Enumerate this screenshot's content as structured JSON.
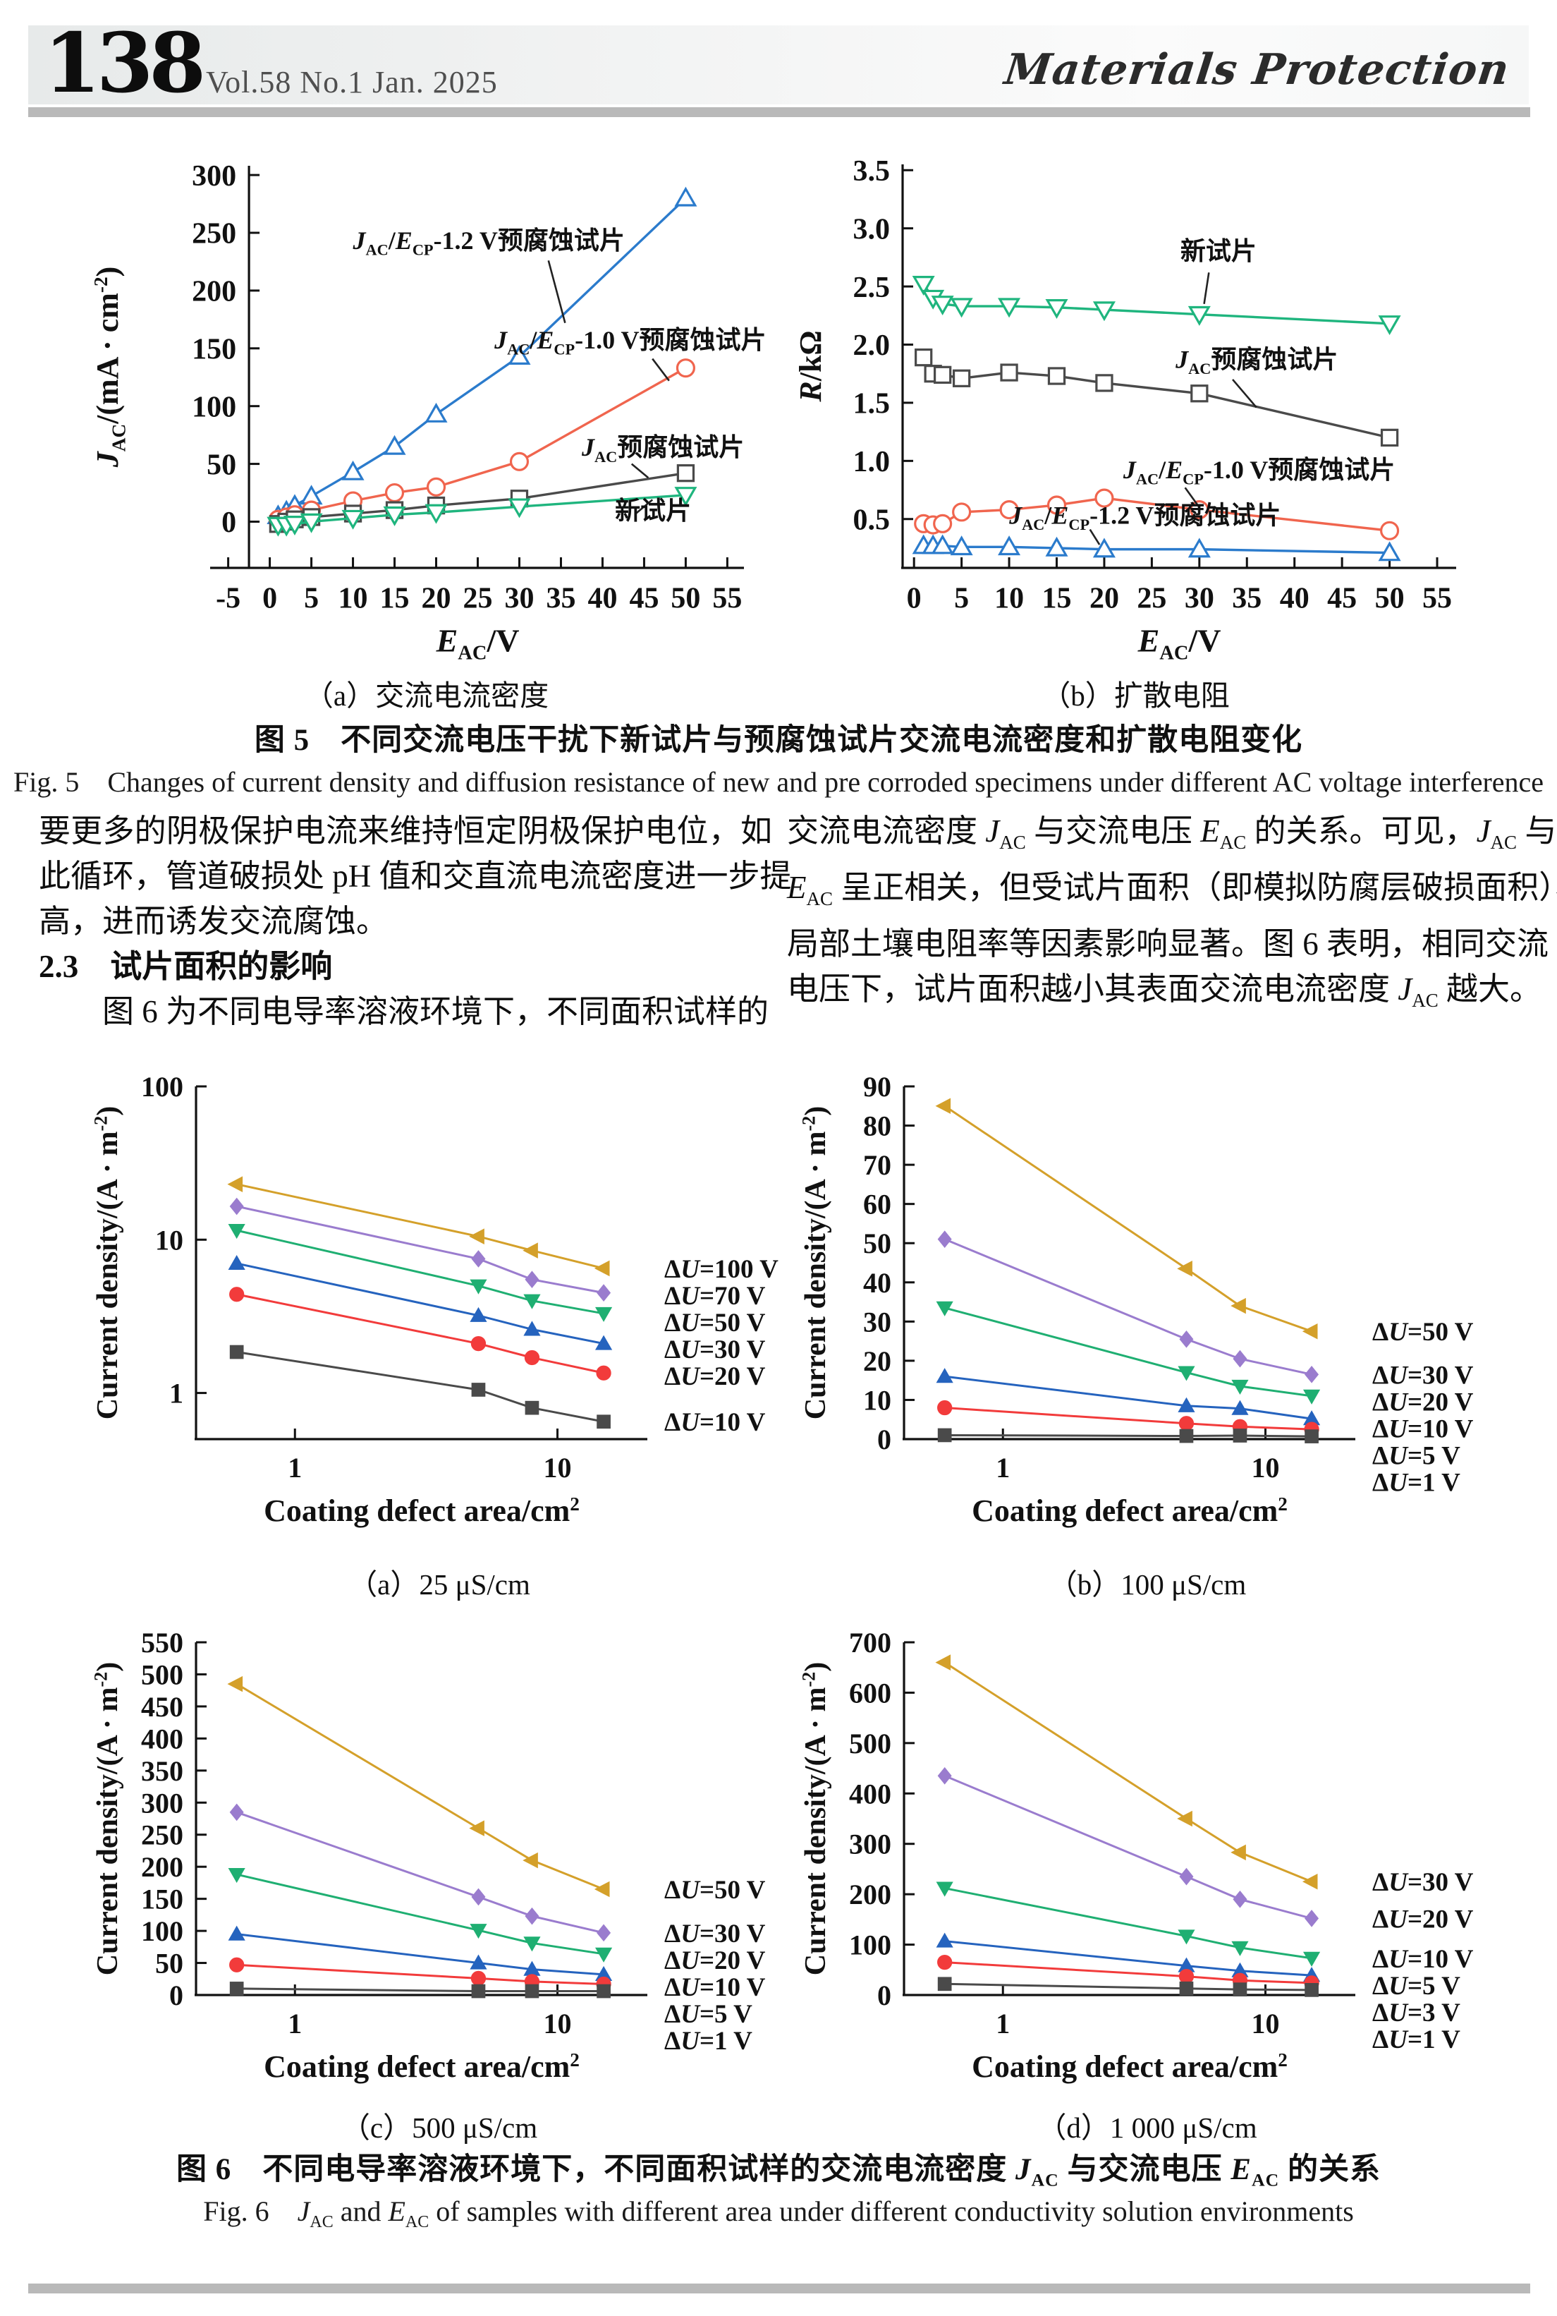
{
  "header": {
    "page_number": "138",
    "issue": "Vol.58 No.1 Jan. 2025",
    "journal": "Materials Protection"
  },
  "colors": {
    "rule_gray": "#b9b9b9",
    "series_blue": "#2B7BCC",
    "series_red": "#F0654E",
    "series_dark": "#4A4A4A",
    "series_green": "#1FB57E",
    "series_gold": "#D4A02A",
    "series_purple": "#9A7CCE"
  },
  "body": {
    "left": {
      "p1_lines": [
        "要更多的阴极保护电流来维持恒定阴极保护电位，如",
        "此循环，管道破损处 pH 值和交直流电流密度进一步提",
        "高，进而诱发交流腐蚀。"
      ],
      "heading": "2.3　试片面积的影响",
      "p2": "图 6 为不同电导率溶液环境下，不同面积试样的"
    },
    "right": {
      "lines": [
        "交流电流密度 *J*_[AC] 与交流电压 *E*_[AC] 的关系。可见，*J*_[AC] 与",
        "*E*_[AC] 呈正相关，但受试片面积（即模拟防腐层破损面积）、",
        "局部土壤电阻率等因素影响显著。图 6 表明，相同交流",
        "电压下，试片面积越小其表面交流电流密度 *J*_[AC] 越大。"
      ]
    }
  },
  "fig5": {
    "caption_zh": "图 5　不同交流电压干扰下新试片与预腐蚀试片交流电流密度和扩散电阻变化",
    "caption_en": "Fig. 5　Changes of current density and diffusion resistance of new and pre corroded specimens under different AC voltage interference"
  },
  "fig6": {
    "caption_zh": "图 6　不同电导率溶液环境下，不同面积试样的交流电流密度 *J*_[AC] 与交流电压 *E*_[AC] 的关系",
    "caption_en": "Fig. 6　*J*_[AC] and *E*_[AC] of samples with different area under different conductivity solution environments"
  },
  "chart_data": {
    "fig5a": {
      "type": "line",
      "caption": "（a）交流电流密度",
      "xlabel": "*E*_[AC]/V",
      "ylabel": "*J*_[AC]/(mA · cm^[-2])",
      "x": {
        "type": "linear",
        "min": -7,
        "max": 57,
        "ticks": [
          -5,
          0,
          5,
          10,
          15,
          20,
          25,
          30,
          35,
          40,
          45,
          50,
          55
        ]
      },
      "y": {
        "type": "linear",
        "min": -40,
        "max": 308,
        "ticks": [
          0,
          50,
          100,
          150,
          200,
          250,
          300
        ]
      },
      "yaxis_at": -2.5,
      "series": [
        {
          "name": "JAC/ECP-1.2 V预腐蚀试片",
          "marker": "triangle-up",
          "open": true,
          "color": "#2B7BCC",
          "x": [
            1,
            2,
            3,
            5,
            10,
            15,
            20,
            30,
            50
          ],
          "y": [
            5,
            9,
            14,
            22,
            43,
            65,
            93,
            143,
            280
          ]
        },
        {
          "name": "JAC/ECP-1.0 V预腐蚀试片",
          "marker": "circle",
          "open": true,
          "color": "#F0654E",
          "x": [
            1,
            2,
            3,
            5,
            10,
            15,
            20,
            30,
            50
          ],
          "y": [
            2,
            4,
            6,
            10,
            18,
            25,
            30,
            52,
            133
          ]
        },
        {
          "name": "JAC预腐蚀试片",
          "marker": "square",
          "open": true,
          "color": "#4A4A4A",
          "x": [
            1,
            2,
            3,
            5,
            10,
            15,
            20,
            30,
            50
          ],
          "y": [
            -2,
            0,
            2,
            4,
            7,
            10,
            14,
            20,
            42
          ]
        },
        {
          "name": "新试片",
          "marker": "triangle-down",
          "open": true,
          "color": "#1FB57E",
          "x": [
            1,
            2,
            3,
            5,
            10,
            15,
            20,
            30,
            50
          ],
          "y": [
            -3,
            -3,
            -2,
            0,
            3,
            6,
            8,
            13,
            23
          ]
        }
      ],
      "annotations": [
        {
          "text": "*J*_[AC]/*E*_[CP]-1.2 V预腐蚀试片",
          "tx": 10,
          "ty": 236,
          "leader": [
            33.5,
            226,
            35.5,
            172
          ]
        },
        {
          "text": "*J*_[AC]/*E*_[CP]-1.0 V预腐蚀试片",
          "tx": 27,
          "ty": 150,
          "leader": [
            46,
            141,
            48,
            122
          ]
        },
        {
          "text": "*J*_[AC]预腐蚀试片",
          "tx": 37.5,
          "ty": 57,
          "leader": [
            43.5,
            50,
            45.5,
            38
          ]
        },
        {
          "text": "新试片",
          "tx": 41.5,
          "ty": 2,
          "leader": [
            44,
            7,
            46,
            19
          ]
        }
      ]
    },
    "fig5b": {
      "type": "line",
      "caption": "（b）扩散电阻",
      "xlabel": "*E*_[AC]/V",
      "ylabel": "*R*/kΩ",
      "x": {
        "type": "linear",
        "min": -1.2,
        "max": 57,
        "ticks": [
          0,
          5,
          10,
          15,
          20,
          25,
          30,
          35,
          40,
          45,
          50,
          55
        ]
      },
      "y": {
        "type": "linear",
        "min": 0.08,
        "max": 3.55,
        "ticks": [
          0.5,
          1.0,
          1.5,
          2.0,
          2.5,
          3.0,
          3.5
        ],
        "dec": 1
      },
      "series": [
        {
          "name": "新试片",
          "marker": "triangle-down",
          "open": true,
          "color": "#1FB57E",
          "x": [
            1,
            2,
            3,
            5,
            10,
            15,
            20,
            30,
            50
          ],
          "y": [
            2.52,
            2.4,
            2.35,
            2.33,
            2.33,
            2.32,
            2.3,
            2.26,
            2.18
          ]
        },
        {
          "name": "JAC预腐蚀试片",
          "marker": "square",
          "open": true,
          "color": "#4A4A4A",
          "x": [
            1,
            2,
            3,
            5,
            10,
            15,
            20,
            30,
            50
          ],
          "y": [
            1.89,
            1.75,
            1.74,
            1.71,
            1.76,
            1.73,
            1.67,
            1.58,
            1.2
          ]
        },
        {
          "name": "JAC/ECP-1.0 V预腐蚀试片",
          "marker": "circle",
          "open": true,
          "color": "#F0654E",
          "x": [
            1,
            2,
            3,
            5,
            10,
            15,
            20,
            30,
            50
          ],
          "y": [
            0.46,
            0.45,
            0.46,
            0.56,
            0.58,
            0.62,
            0.68,
            0.58,
            0.4
          ]
        },
        {
          "name": "JAC/ECP-1.2 V预腐蚀试片",
          "marker": "triangle-up",
          "open": true,
          "color": "#2B7BCC",
          "x": [
            1,
            2,
            3,
            5,
            10,
            15,
            20,
            30,
            50
          ],
          "y": [
            0.27,
            0.27,
            0.27,
            0.26,
            0.26,
            0.25,
            0.24,
            0.24,
            0.21
          ]
        }
      ],
      "annotations": [
        {
          "text": "新试片",
          "tx": 28,
          "ty": 2.73,
          "leader": [
            31,
            2.62,
            30.5,
            2.35
          ]
        },
        {
          "text": "*J*_[AC]预腐蚀试片",
          "tx": 27.5,
          "ty": 1.8,
          "leader": [
            33.5,
            1.7,
            36,
            1.46
          ]
        },
        {
          "text": "*J*_[AC]/*E*_[CP]-1.0 V预腐蚀试片",
          "tx": 22,
          "ty": 0.85,
          "leader": [
            28.5,
            0.77,
            30,
            0.6
          ]
        },
        {
          "text": "*J*_[AC]/*E*_[CP]-1.2 V预腐蚀试片",
          "tx": 10,
          "ty": 0.46,
          "leader": [
            18.5,
            0.41,
            19.5,
            0.28
          ]
        }
      ]
    },
    "fig6a": {
      "type": "line",
      "caption": "（a）25 μS/cm",
      "xlabel": "Coating defect area/cm^[2]",
      "ylabel": "Current density/(A · m^[-2])",
      "x": {
        "type": "log",
        "min": 0.42,
        "max": 22,
        "ticks": [
          1,
          10
        ]
      },
      "y": {
        "type": "log",
        "min": 0.5,
        "max": 100,
        "ticks": [
          1,
          10,
          100
        ]
      },
      "series": [
        {
          "label": "Δ*U*=100 V",
          "marker": "triangle-left",
          "open": false,
          "color": "#D4A02A",
          "x": [
            0.6,
            5,
            8,
            15
          ],
          "y": [
            23,
            10.5,
            8.5,
            6.5
          ]
        },
        {
          "label": "Δ*U*=70 V",
          "marker": "diamond",
          "open": false,
          "color": "#9A7CCE",
          "x": [
            0.6,
            5,
            8,
            15
          ],
          "y": [
            16.5,
            7.5,
            5.5,
            4.5
          ]
        },
        {
          "label": "Δ*U*=50 V",
          "marker": "triangle-down",
          "open": false,
          "color": "#1FAF72",
          "x": [
            0.6,
            5,
            8,
            15
          ],
          "y": [
            11.5,
            5.0,
            4.0,
            3.3
          ]
        },
        {
          "label": "Δ*U*=30 V",
          "marker": "triangle-up",
          "open": false,
          "color": "#2563BE",
          "x": [
            0.6,
            5,
            8,
            15
          ],
          "y": [
            7.0,
            3.2,
            2.6,
            2.1
          ]
        },
        {
          "label": "Δ*U*=20 V",
          "marker": "circle",
          "open": false,
          "color": "#F23B3B",
          "x": [
            0.6,
            5,
            8,
            15
          ],
          "y": [
            4.4,
            2.1,
            1.7,
            1.35
          ]
        },
        {
          "label": "Δ*U*=10 V",
          "marker": "square",
          "open": false,
          "color": "#4A4A4A",
          "x": [
            0.6,
            5,
            8,
            15
          ],
          "y": [
            1.85,
            1.05,
            0.8,
            0.65
          ]
        }
      ]
    },
    "fig6b": {
      "type": "line",
      "caption": "（b）100 μS/cm",
      "xlabel": "Coating defect area/cm^[2]",
      "ylabel": "Current density/(A · m^[-2])",
      "x": {
        "type": "log",
        "min": 0.42,
        "max": 22,
        "ticks": [
          1,
          10
        ]
      },
      "y": {
        "type": "linear",
        "min": 0,
        "max": 90,
        "ticks": [
          0,
          10,
          20,
          30,
          40,
          50,
          60,
          70,
          80,
          90
        ]
      },
      "series": [
        {
          "label": "Δ*U*=50 V",
          "marker": "triangle-left",
          "open": false,
          "color": "#D4A02A",
          "x": [
            0.6,
            5,
            8,
            15
          ],
          "y": [
            85,
            43.5,
            34,
            27.5
          ]
        },
        {
          "label": "Δ*U*=30 V",
          "marker": "diamond",
          "open": false,
          "color": "#9A7CCE",
          "x": [
            0.6,
            5,
            8,
            15
          ],
          "y": [
            51,
            25.5,
            20.5,
            16.5
          ]
        },
        {
          "label": "Δ*U*=20 V",
          "marker": "triangle-down",
          "open": false,
          "color": "#1FAF72",
          "x": [
            0.6,
            5,
            8,
            15
          ],
          "y": [
            33.5,
            17,
            13.5,
            11
          ]
        },
        {
          "label": "Δ*U*=10 V",
          "marker": "triangle-up",
          "open": false,
          "color": "#2563BE",
          "x": [
            0.6,
            5,
            8,
            15
          ],
          "y": [
            16,
            8.5,
            7.8,
            5.2
          ]
        },
        {
          "label": "Δ*U*=5 V",
          "marker": "circle",
          "open": false,
          "color": "#F23B3B",
          "x": [
            0.6,
            5,
            8,
            15
          ],
          "y": [
            8,
            4,
            3.2,
            2.5
          ]
        },
        {
          "label": "Δ*U*=1 V",
          "marker": "square",
          "open": false,
          "color": "#4A4A4A",
          "x": [
            0.6,
            5,
            8,
            15
          ],
          "y": [
            1,
            0.8,
            0.9,
            0.7
          ]
        }
      ]
    },
    "fig6c": {
      "type": "line",
      "caption": "（c）500 μS/cm",
      "xlabel": "Coating defect area/cm^[2]",
      "ylabel": "Current density/(A · m^[-2])",
      "x": {
        "type": "log",
        "min": 0.42,
        "max": 22,
        "ticks": [
          1,
          10
        ]
      },
      "y": {
        "type": "linear",
        "min": 0,
        "max": 550,
        "ticks": [
          0,
          50,
          100,
          150,
          200,
          250,
          300,
          350,
          400,
          450,
          500,
          550
        ]
      },
      "series": [
        {
          "label": "Δ*U*=50 V",
          "marker": "triangle-left",
          "open": false,
          "color": "#D4A02A",
          "x": [
            0.6,
            5,
            8,
            15
          ],
          "y": [
            485,
            260,
            210,
            165
          ]
        },
        {
          "label": "Δ*U*=30 V",
          "marker": "diamond",
          "open": false,
          "color": "#9A7CCE",
          "x": [
            0.6,
            5,
            8,
            15
          ],
          "y": [
            285,
            153,
            123,
            97
          ]
        },
        {
          "label": "Δ*U*=20 V",
          "marker": "triangle-down",
          "open": false,
          "color": "#1FAF72",
          "x": [
            0.6,
            5,
            8,
            15
          ],
          "y": [
            188,
            101,
            81,
            64
          ]
        },
        {
          "label": "Δ*U*=10 V",
          "marker": "triangle-up",
          "open": false,
          "color": "#2563BE",
          "x": [
            0.6,
            5,
            8,
            15
          ],
          "y": [
            95,
            50,
            40,
            32
          ]
        },
        {
          "label": "Δ*U*=5 V",
          "marker": "circle",
          "open": false,
          "color": "#F23B3B",
          "x": [
            0.6,
            5,
            8,
            15
          ],
          "y": [
            47,
            26,
            21,
            17
          ]
        },
        {
          "label": "Δ*U*=1 V",
          "marker": "square",
          "open": false,
          "color": "#4A4A4A",
          "x": [
            0.6,
            5,
            8,
            15
          ],
          "y": [
            10,
            6,
            6,
            6
          ]
        }
      ]
    },
    "fig6d": {
      "type": "line",
      "caption": "（d）1 000 μS/cm",
      "xlabel": "Coating defect area/cm^[2]",
      "ylabel": "Current density/(A · m^[-2])",
      "x": {
        "type": "log",
        "min": 0.42,
        "max": 22,
        "ticks": [
          1,
          10
        ]
      },
      "y": {
        "type": "linear",
        "min": 0,
        "max": 700,
        "ticks": [
          0,
          100,
          200,
          300,
          400,
          500,
          600,
          700
        ]
      },
      "series": [
        {
          "label": "Δ*U*=30 V",
          "marker": "triangle-left",
          "open": false,
          "color": "#D4A02A",
          "x": [
            0.6,
            5,
            8,
            15
          ],
          "y": [
            660,
            350,
            283,
            225
          ]
        },
        {
          "label": "Δ*U*=20 V",
          "marker": "diamond",
          "open": false,
          "color": "#9A7CCE",
          "x": [
            0.6,
            5,
            8,
            15
          ],
          "y": [
            435,
            235,
            190,
            152
          ]
        },
        {
          "label": "Δ*U*=10 V",
          "marker": "triangle-down",
          "open": false,
          "color": "#1FAF72",
          "x": [
            0.6,
            5,
            8,
            15
          ],
          "y": [
            212,
            117,
            94,
            73
          ]
        },
        {
          "label": "Δ*U*=5 V",
          "marker": "triangle-up",
          "open": false,
          "color": "#2563BE",
          "x": [
            0.6,
            5,
            8,
            15
          ],
          "y": [
            107,
            58,
            48,
            39
          ]
        },
        {
          "label": "Δ*U*=3 V",
          "marker": "circle",
          "open": false,
          "color": "#F23B3B",
          "x": [
            0.6,
            5,
            8,
            15
          ],
          "y": [
            65,
            37,
            29,
            24
          ]
        },
        {
          "label": "Δ*U*=1 V",
          "marker": "square",
          "open": false,
          "color": "#4A4A4A",
          "x": [
            0.6,
            5,
            8,
            15
          ],
          "y": [
            22,
            13,
            11,
            10
          ]
        }
      ]
    }
  }
}
